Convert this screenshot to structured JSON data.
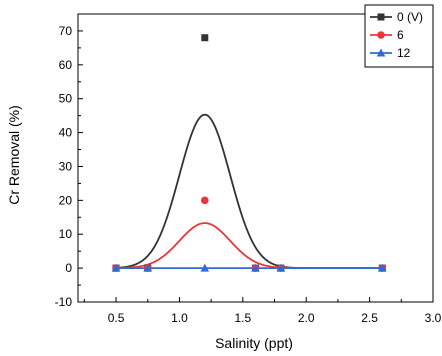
{
  "chart_data": {
    "type": "scatter",
    "xlabel": "Salinity (ppt)",
    "ylabel": "Cr Removal (%)",
    "xlim": [
      0.2,
      3.0
    ],
    "ylim": [
      -10,
      75
    ],
    "xticks": [
      "0.5",
      "1.0",
      "1.5",
      "2.0",
      "2.5",
      "3.0"
    ],
    "yticks": [
      "-10",
      "0",
      "10",
      "20",
      "30",
      "40",
      "50",
      "60",
      "70"
    ],
    "legend_position": "top-right",
    "grid": false,
    "series": [
      {
        "name": "0 (V)",
        "marker": "square",
        "color": "#333333",
        "x": [
          0.5,
          0.75,
          1.2,
          1.6,
          1.8,
          2.6
        ],
        "y": [
          0,
          0,
          68,
          0,
          0,
          0
        ],
        "fit": {
          "type": "gaussian",
          "center": 1.2,
          "amplitude": 45.3,
          "width": 0.2,
          "baseline": 0
        }
      },
      {
        "name": "6",
        "marker": "circle",
        "color": "#e8373b",
        "x": [
          0.5,
          0.75,
          1.2,
          1.6,
          1.8,
          2.6
        ],
        "y": [
          0,
          0,
          20,
          0,
          0,
          0
        ],
        "fit": {
          "type": "gaussian",
          "center": 1.2,
          "amplitude": 13.3,
          "width": 0.2,
          "baseline": 0
        }
      },
      {
        "name": "12",
        "marker": "triangle",
        "color": "#2f6bd4",
        "x": [
          0.5,
          0.75,
          1.2,
          1.6,
          1.8,
          2.6
        ],
        "y": [
          0,
          0,
          0,
          0,
          0,
          0
        ],
        "fit": {
          "type": "flat",
          "value": 0
        }
      }
    ]
  }
}
